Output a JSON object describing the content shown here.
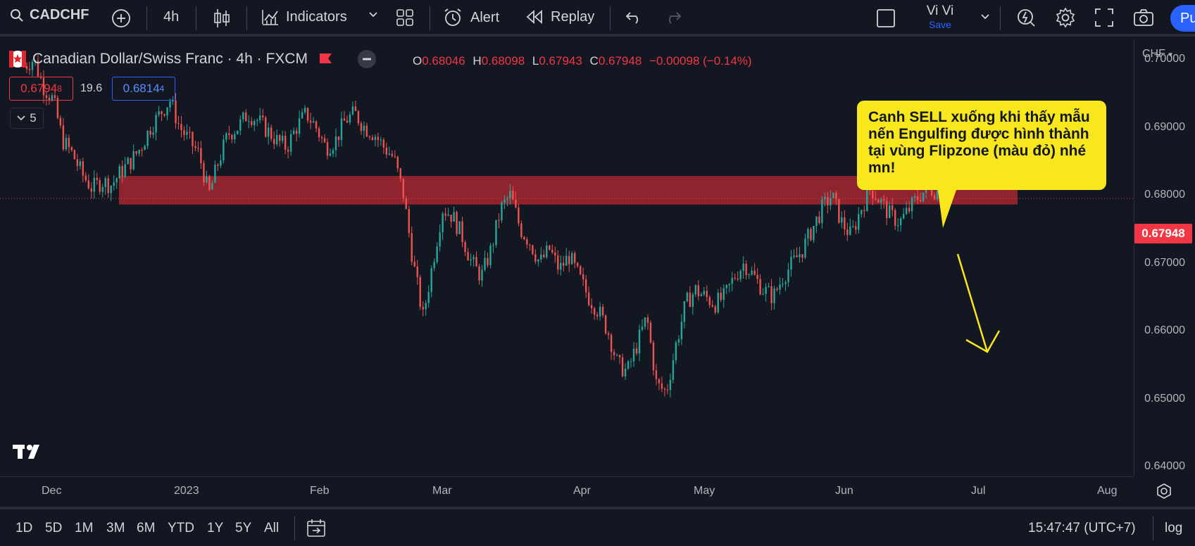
{
  "toolbar": {
    "symbol": "CADCHF",
    "interval": "4h",
    "indicators_label": "Indicators",
    "alert_label": "Alert",
    "replay_label": "Replay",
    "user_name": "Vi Vi",
    "save_label": "Save",
    "publish_label": "Pu"
  },
  "legend": {
    "title": "Canadian Dollar/Swiss Franc · 4h · FXCM",
    "open_key": "O",
    "open": "0.68046",
    "high_key": "H",
    "high": "0.68098",
    "low_key": "L",
    "low": "0.67943",
    "close_key": "C",
    "close": "0.67948",
    "change": "−0.00098 (−0.14%)",
    "sell_price": "0.6794",
    "sell_price_sup": "8",
    "spread": "19.6",
    "buy_price": "0.6814",
    "buy_price_sup": "4",
    "indicator_count": "5"
  },
  "price_axis": {
    "currency": "CHF",
    "ticks": [
      "0.70000",
      "0.69000",
      "0.68000",
      "0.67000",
      "0.66000",
      "0.65000",
      "0.64000"
    ],
    "tick_values": [
      0.7,
      0.69,
      0.68,
      0.67,
      0.66,
      0.65,
      0.64
    ],
    "current_price": "0.67948"
  },
  "time_axis": {
    "labels": [
      "Dec",
      "2023",
      "Feb",
      "Mar",
      "Apr",
      "May",
      "Jun",
      "Jul",
      "Aug"
    ]
  },
  "annotation": {
    "text": "Canh SELL xuống khi thấy mẫu nến Engulfing được hình thành tại vùng Flipzone (màu đỏ) nhé mn!",
    "zone_low": 0.6786,
    "zone_high": 0.6828,
    "zone_color": "#b22833",
    "callout_color": "#f8e71c",
    "arrow_color": "#f8e71c"
  },
  "chart_data": {
    "type": "candlestick",
    "title": "Canadian Dollar/Swiss Franc · 4h · FXCM",
    "ylim": [
      0.6395,
      0.7025
    ],
    "x_labels": [
      "Dec",
      "2023",
      "Feb",
      "Mar",
      "Apr",
      "May",
      "Jun",
      "Jul",
      "Aug"
    ],
    "close_path": [
      [
        0.699,
        0.7
      ],
      [
        0.696,
        0.694
      ],
      [
        0.688,
        0.686
      ],
      [
        0.683,
        0.681
      ],
      [
        0.682,
        0.6815
      ],
      [
        0.6835,
        0.685
      ],
      [
        0.687,
        0.69
      ],
      [
        0.692,
        0.694
      ],
      [
        0.69,
        0.688
      ],
      [
        0.686,
        0.68
      ],
      [
        0.685,
        0.689
      ],
      [
        0.69,
        0.692
      ],
      [
        0.691,
        0.6895
      ],
      [
        0.688,
        0.687
      ],
      [
        0.69,
        0.692
      ],
      [
        0.69,
        0.687
      ],
      [
        0.688,
        0.691
      ],
      [
        0.692,
        0.69
      ],
      [
        0.689,
        0.687
      ],
      [
        0.6855,
        0.68
      ],
      [
        0.67,
        0.662
      ],
      [
        0.67,
        0.678
      ],
      [
        0.677,
        0.674
      ],
      [
        0.67,
        0.668
      ],
      [
        0.672,
        0.678
      ],
      [
        0.68,
        0.675
      ],
      [
        0.673,
        0.67
      ],
      [
        0.672,
        0.669
      ],
      [
        0.671,
        0.668
      ],
      [
        0.665,
        0.663
      ],
      [
        0.66,
        0.655
      ],
      [
        0.654,
        0.658
      ],
      [
        0.662,
        0.652
      ],
      [
        0.651,
        0.658
      ],
      [
        0.664,
        0.666
      ],
      [
        0.665,
        0.664
      ],
      [
        0.665,
        0.668
      ],
      [
        0.67,
        0.668
      ],
      [
        0.666,
        0.665
      ],
      [
        0.668,
        0.67
      ],
      [
        0.672,
        0.675
      ],
      [
        0.678,
        0.68
      ],
      [
        0.676,
        0.674
      ],
      [
        0.678,
        0.681
      ],
      [
        0.679,
        0.677
      ],
      [
        0.676,
        0.678
      ],
      [
        0.68,
        0.681
      ],
      [
        0.6805,
        0.6795
      ]
    ],
    "last_close": 0.67948
  },
  "bottom": {
    "ranges": [
      "1D",
      "5D",
      "1M",
      "3M",
      "6M",
      "YTD",
      "1Y",
      "5Y",
      "All"
    ],
    "clock": "15:47:47 (UTC+7)",
    "log_label": "log"
  },
  "colors": {
    "background": "#131722",
    "up": "#26a69a",
    "down": "#ef5350",
    "accent": "#2962ff",
    "sell": "#f23645"
  }
}
